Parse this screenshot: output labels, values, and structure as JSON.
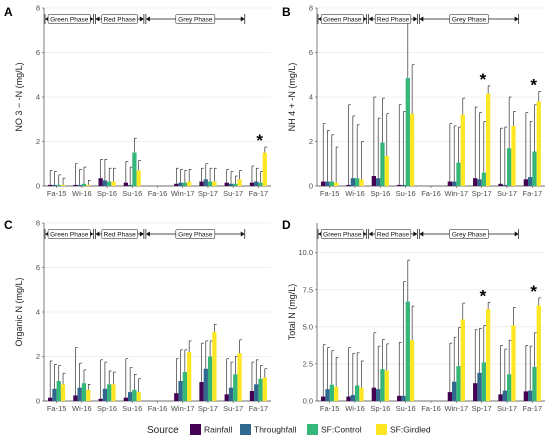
{
  "legend": {
    "title": "Source",
    "items": [
      {
        "label": "Rainfall",
        "color": "#440154"
      },
      {
        "label": "Throughfall",
        "color": "#31688e"
      },
      {
        "label": "SF:Control",
        "color": "#35b779"
      },
      {
        "label": "SF:Girdled",
        "color": "#fde725"
      }
    ]
  },
  "phases": [
    {
      "label": "Green Phase",
      "from": 0,
      "to": 2
    },
    {
      "label": "Red Phase",
      "from": 2,
      "to": 4
    },
    {
      "label": "Grey Phase",
      "from": 4,
      "to": 8
    }
  ],
  "chart_data": [
    {
      "type": "bar",
      "panel": "A",
      "ylabel": "NO 3 − -N (mg/L)",
      "categories": [
        "Fa-15",
        "Wi-16",
        "Sp-16",
        "Su-16",
        "Fa-16",
        "Win-17",
        "Sp-17",
        "Su-17",
        "Fa-17"
      ],
      "ylim": [
        0,
        8
      ],
      "yticks": [
        0,
        2,
        4,
        6,
        8
      ],
      "series": [
        {
          "name": "Rainfall",
          "values": [
            0.05,
            0.05,
            0.35,
            0.15,
            null,
            0.1,
            0.2,
            0.15,
            0.15
          ],
          "errors": [
            0.65,
            0.95,
            0.85,
            0.95,
            null,
            0.7,
            0.6,
            0.6,
            0.75
          ]
        },
        {
          "name": "Throughfall",
          "values": [
            0.05,
            0.05,
            0.25,
            0.05,
            null,
            0.15,
            0.3,
            0.1,
            0.2
          ],
          "errors": [
            0.6,
            0.7,
            0.95,
            0.8,
            null,
            0.6,
            0.7,
            0.55,
            0.6
          ]
        },
        {
          "name": "SF:Control",
          "values": [
            0.05,
            0.1,
            0.2,
            1.5,
            null,
            0.15,
            0.2,
            0.1,
            0.15
          ],
          "errors": [
            0.45,
            0.75,
            0.6,
            0.65,
            null,
            0.55,
            0.6,
            0.35,
            0.5
          ]
        },
        {
          "name": "SF:Girdled",
          "values": [
            0.05,
            0.05,
            0.2,
            0.7,
            null,
            0.2,
            0.2,
            0.3,
            1.5
          ],
          "errors": [
            0.3,
            0.2,
            0.6,
            0.45,
            null,
            0.55,
            0.6,
            0.4,
            0.25
          ]
        }
      ],
      "annotations": [
        {
          "text": "*",
          "category": "Fa-17"
        }
      ]
    },
    {
      "type": "bar",
      "panel": "B",
      "ylabel": "NH 4 + -N (mg/L)",
      "categories": [
        "Fa-15",
        "Wi-16",
        "Sp-16",
        "Su-16",
        "Fa-16",
        "Win-17",
        "Sp-17",
        "Su-17",
        "Fa-17"
      ],
      "ylim": [
        0,
        8
      ],
      "yticks": [
        0,
        2,
        4,
        6,
        8
      ],
      "series": [
        {
          "name": "Rainfall",
          "values": [
            0.2,
            0.05,
            0.45,
            0.05,
            null,
            0.2,
            0.35,
            0.1,
            0.3
          ],
          "errors": [
            2.6,
            3.6,
            3.55,
            3.6,
            null,
            2.6,
            3.2,
            2.5,
            3.0
          ]
        },
        {
          "name": "Throughfall",
          "values": [
            0.2,
            0.35,
            0.35,
            0.05,
            null,
            0.2,
            0.3,
            0.05,
            0.4
          ],
          "errors": [
            2.3,
            2.8,
            2.7,
            3.3,
            null,
            2.5,
            3.0,
            2.6,
            2.5
          ]
        },
        {
          "name": "SF:Control",
          "values": [
            0.2,
            0.35,
            1.95,
            4.85,
            null,
            1.05,
            0.6,
            1.7,
            1.55
          ],
          "errors": [
            2.1,
            2.4,
            2.0,
            2.5,
            null,
            1.6,
            2.3,
            2.3,
            2.1
          ]
        },
        {
          "name": "SF:Girdled",
          "values": [
            0.15,
            0.3,
            1.35,
            3.25,
            null,
            3.2,
            4.15,
            2.7,
            3.8
          ],
          "errors": [
            1.6,
            1.7,
            1.9,
            2.2,
            null,
            0.75,
            0.35,
            0.65,
            0.45
          ]
        }
      ],
      "annotations": [
        {
          "text": "*",
          "category": "Sp-17"
        },
        {
          "text": "*",
          "category": "Fa-17"
        }
      ]
    },
    {
      "type": "bar",
      "panel": "C",
      "ylabel": "Organic N (mg/L)",
      "categories": [
        "Fa-15",
        "Wi-16",
        "Sp-16",
        "Su-16",
        "Fa-16",
        "Win-17",
        "Sp-17",
        "Su-17",
        "Fa-17"
      ],
      "ylim": [
        0,
        8
      ],
      "yticks": [
        0,
        2,
        4,
        6,
        8
      ],
      "series": [
        {
          "name": "Rainfall",
          "values": [
            0.15,
            0.25,
            0.1,
            0.15,
            null,
            0.35,
            0.85,
            0.3,
            0.45
          ],
          "errors": [
            1.65,
            2.15,
            1.75,
            1.75,
            null,
            1.55,
            1.75,
            1.6,
            1.3
          ]
        },
        {
          "name": "Throughfall",
          "values": [
            0.55,
            0.6,
            0.55,
            0.4,
            null,
            0.9,
            1.45,
            0.6,
            0.75
          ],
          "errors": [
            1.1,
            1.1,
            1.2,
            1.1,
            null,
            1.4,
            1.25,
            1.15,
            1.1
          ]
        },
        {
          "name": "SF:Control",
          "values": [
            0.9,
            0.8,
            0.75,
            0.5,
            null,
            1.3,
            2.0,
            1.2,
            1.0
          ],
          "errors": [
            0.7,
            0.6,
            0.6,
            0.7,
            null,
            1.0,
            0.7,
            0.8,
            0.6
          ]
        },
        {
          "name": "SF:Girdled",
          "values": [
            0.75,
            0.5,
            0.75,
            0.4,
            null,
            2.2,
            3.1,
            2.15,
            1.05
          ],
          "errors": [
            0.5,
            0.25,
            0.55,
            0.6,
            null,
            0.5,
            0.35,
            0.6,
            0.4
          ]
        }
      ],
      "annotations": []
    },
    {
      "type": "bar",
      "panel": "D",
      "ylabel": "Total N (mg/L)",
      "categories": [
        "Fa-15",
        "Wi-16",
        "Sp-16",
        "Su-16",
        "Fa-16",
        "Win-17",
        "Sp-17",
        "Su-17",
        "Fa-17"
      ],
      "ylim": [
        0,
        12
      ],
      "yticks": [
        0,
        2.5,
        5,
        7.5,
        10
      ],
      "yticklabels": [
        "0.0",
        "2.5",
        "5.0",
        "7.5",
        "10.0"
      ],
      "series": [
        {
          "name": "Rainfall",
          "values": [
            0.3,
            0.3,
            0.9,
            0.35,
            null,
            0.6,
            1.2,
            0.45,
            0.65
          ],
          "errors": [
            3.5,
            3.3,
            3.7,
            3.6,
            null,
            3.3,
            3.6,
            3.3,
            3.1
          ]
        },
        {
          "name": "Throughfall",
          "values": [
            0.8,
            0.4,
            0.8,
            0.35,
            null,
            1.3,
            1.9,
            0.7,
            0.7
          ],
          "errors": [
            2.8,
            2.8,
            2.9,
            7.7,
            null,
            3.0,
            3.0,
            2.8,
            3.0
          ]
        },
        {
          "name": "SF:Control",
          "values": [
            1.1,
            1.05,
            2.15,
            6.7,
            null,
            2.35,
            2.6,
            1.8,
            2.3
          ],
          "errors": [
            2.3,
            2.2,
            2.0,
            2.8,
            null,
            2.6,
            2.5,
            2.3,
            2.3
          ]
        },
        {
          "name": "SF:Girdled",
          "values": [
            0.95,
            0.9,
            2.05,
            4.1,
            null,
            5.5,
            6.2,
            5.1,
            6.45
          ],
          "errors": [
            2.0,
            1.8,
            1.8,
            2.3,
            null,
            1.1,
            0.45,
            1.2,
            0.5
          ]
        }
      ],
      "annotations": [
        {
          "text": "*",
          "category": "Sp-17"
        },
        {
          "text": "*",
          "category": "Fa-17"
        }
      ]
    }
  ]
}
